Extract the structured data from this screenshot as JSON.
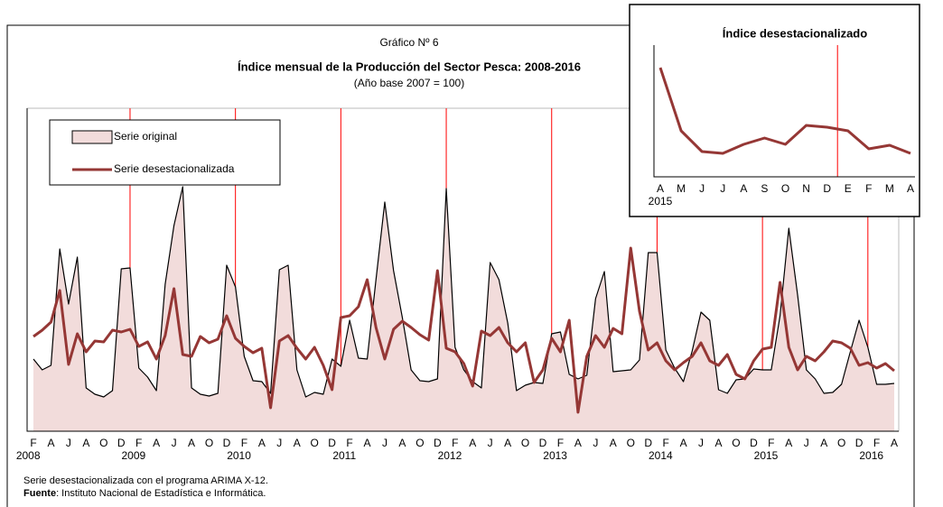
{
  "chart_data": [
    {
      "type": "line",
      "supertitle": "Gráfico Nº 6",
      "title": "Índice mensual de la Producción del Sector Pesca: 2008-2016",
      "subtitle": "(Año base  2007 = 100)",
      "categories": [
        "F",
        null,
        "A",
        null,
        "J",
        null,
        "A",
        null,
        "O",
        null,
        "D",
        null,
        "F",
        null,
        "A",
        null,
        "J",
        null,
        "A",
        null,
        "O",
        null,
        "D",
        null,
        "F",
        null,
        "A",
        null,
        "J",
        null,
        "A",
        null,
        "O",
        null,
        "D",
        null,
        "F",
        null,
        "A",
        null,
        "J",
        null,
        "A",
        null,
        "O",
        null,
        "D",
        null,
        "F",
        null,
        "A",
        null,
        "J",
        null,
        "A",
        null,
        "O",
        null,
        "D",
        null,
        "F",
        null,
        "A",
        null,
        "J",
        null,
        "A",
        null,
        "O",
        null,
        "D",
        null,
        "F",
        null,
        "A",
        null,
        "J",
        null,
        "A",
        null,
        "O",
        null,
        "D",
        null,
        "F",
        null,
        "A",
        null,
        "J",
        null,
        "A",
        null,
        "O",
        null,
        "D",
        null,
        "F",
        null,
        "A"
      ],
      "year_labels": [
        "2008",
        "2009",
        "2010",
        "2011",
        "2012",
        "2013",
        "2014",
        "2015",
        "2016"
      ],
      "series": [
        {
          "name": "Serie original",
          "color": "#000000",
          "area_color": "#f2dcdb",
          "values": [
            80,
            68,
            73,
            202,
            141,
            193,
            48,
            41,
            38,
            45,
            180,
            181,
            70,
            60,
            45,
            163,
            228,
            271,
            48,
            41,
            39,
            42,
            184,
            160,
            83,
            56,
            55,
            42,
            179,
            184,
            68,
            38,
            43,
            41,
            80,
            72,
            123,
            81,
            80,
            168,
            254,
            178,
            126,
            68,
            56,
            55,
            58,
            269,
            93,
            68,
            55,
            48,
            187,
            168,
            120,
            45,
            51,
            54,
            53,
            108,
            110,
            63,
            58,
            62,
            147,
            177,
            66,
            67,
            68,
            79,
            198,
            198,
            90,
            70,
            55,
            89,
            132,
            123,
            46,
            42,
            57,
            58,
            69,
            68,
            68,
            128,
            225,
            151,
            68,
            58,
            42,
            43,
            52,
            88,
            123,
            93,
            52,
            52,
            53
          ]
        },
        {
          "name": "Serie desestacionalizada",
          "color": "#953735",
          "values": [
            105,
            112,
            121,
            156,
            74,
            108,
            88,
            100,
            99,
            112,
            110,
            113,
            94,
            99,
            80,
            106,
            158,
            85,
            83,
            105,
            98,
            102,
            128,
            103,
            94,
            87,
            92,
            26,
            100,
            106,
            92,
            80,
            93,
            73,
            46,
            126,
            128,
            138,
            168,
            115,
            80,
            113,
            122,
            115,
            107,
            101,
            178,
            92,
            88,
            75,
            50,
            111,
            106,
            115,
            98,
            88,
            98,
            54,
            68,
            103,
            88,
            123,
            21,
            83,
            106,
            93,
            114,
            108,
            203,
            133,
            90,
            98,
            78,
            68,
            76,
            83,
            98,
            78,
            73,
            85,
            63,
            58,
            78,
            91,
            93,
            165,
            93,
            68,
            83,
            78,
            88,
            100,
            98,
            92,
            73,
            76,
            70,
            75,
            67
          ]
        }
      ],
      "ylim": [
        0,
        358
      ],
      "year_line_color": "#ff0000",
      "note": "Serie desestacionalizada  con el programa  ARIMA  X-12.",
      "source_label": "Fuente",
      "source_text": ": Instituto  Nacional  de  Estadística  e  Informática."
    },
    {
      "type": "line",
      "title": "Índice desestacionalizado",
      "categories": [
        "A",
        "M",
        "J",
        "J",
        "A",
        "S",
        "O",
        "N",
        "D",
        "E",
        "F",
        "M",
        "A"
      ],
      "year_labels": [
        "2015"
      ],
      "series": [
        {
          "color": "#953735",
          "values": [
            121,
            51,
            28,
            26,
            36,
            43,
            36,
            57,
            55,
            51,
            31,
            35,
            26
          ]
        }
      ],
      "ylim": [
        0,
        146
      ],
      "year_line_color": "#ff0000"
    }
  ]
}
